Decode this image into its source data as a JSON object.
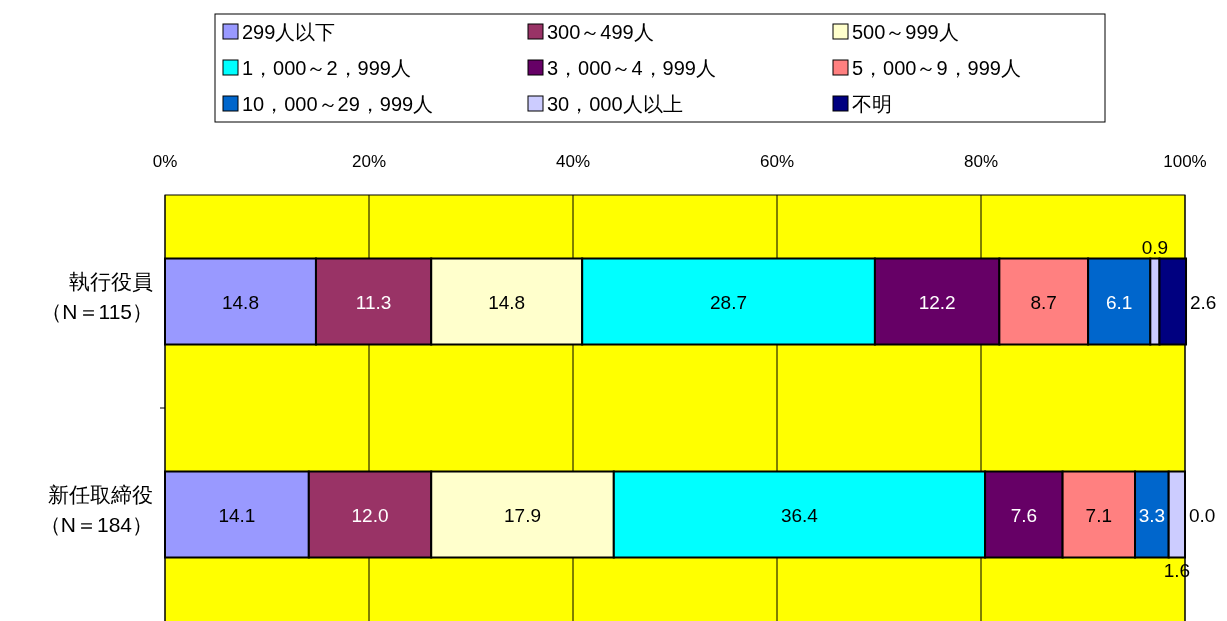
{
  "chart_data": {
    "type": "bar",
    "orientation": "horizontal",
    "stacked": true,
    "grid": "x",
    "legend": "top",
    "categories": [
      "執行役員（N＝115）",
      "新任取締役（N＝184）"
    ],
    "xlim": [
      0,
      100
    ],
    "xticks": [
      {
        "value": 0,
        "label": "0%"
      },
      {
        "value": 20,
        "label": "20%"
      },
      {
        "value": 40,
        "label": "40%"
      },
      {
        "value": 60,
        "label": "60%"
      },
      {
        "value": 80,
        "label": "80%"
      },
      {
        "value": 100,
        "label": "100%"
      }
    ],
    "series": [
      {
        "name": "299人以下",
        "color": "#9999ff",
        "values": [
          14.8,
          14.1
        ],
        "value_labels": [
          "14.8",
          "14.1"
        ]
      },
      {
        "name": "300～499人",
        "color": "#993366",
        "values": [
          11.3,
          12.0
        ],
        "value_labels": [
          "11.3",
          "12.0"
        ]
      },
      {
        "name": "500～999人",
        "color": "#ffffcc",
        "values": [
          14.8,
          17.9
        ],
        "value_labels": [
          "14.8",
          "17.9"
        ]
      },
      {
        "name": "1，000～2，999人",
        "color": "#00ffff",
        "values": [
          28.7,
          36.4
        ],
        "value_labels": [
          "28.7",
          "36.4"
        ]
      },
      {
        "name": "3，000～4，999人",
        "color": "#660066",
        "values": [
          12.2,
          7.6
        ],
        "value_labels": [
          "12.2",
          "7.6"
        ]
      },
      {
        "name": "5，000～9，999人",
        "color": "#ff8080",
        "values": [
          8.7,
          7.1
        ],
        "value_labels": [
          "8.7",
          "7.1"
        ]
      },
      {
        "name": "10，000～29，999人",
        "color": "#0066cc",
        "values": [
          6.1,
          3.3
        ],
        "value_labels": [
          "6.1",
          "3.3"
        ]
      },
      {
        "name": "30，000人以上",
        "color": "#ccccff",
        "values": [
          0.9,
          1.6
        ],
        "value_labels": [
          "0.9",
          "1.6"
        ]
      },
      {
        "name": "不明",
        "color": "#000080",
        "values": [
          2.6,
          0.0
        ],
        "value_labels": [
          "2.6",
          "0.0"
        ]
      }
    ]
  }
}
